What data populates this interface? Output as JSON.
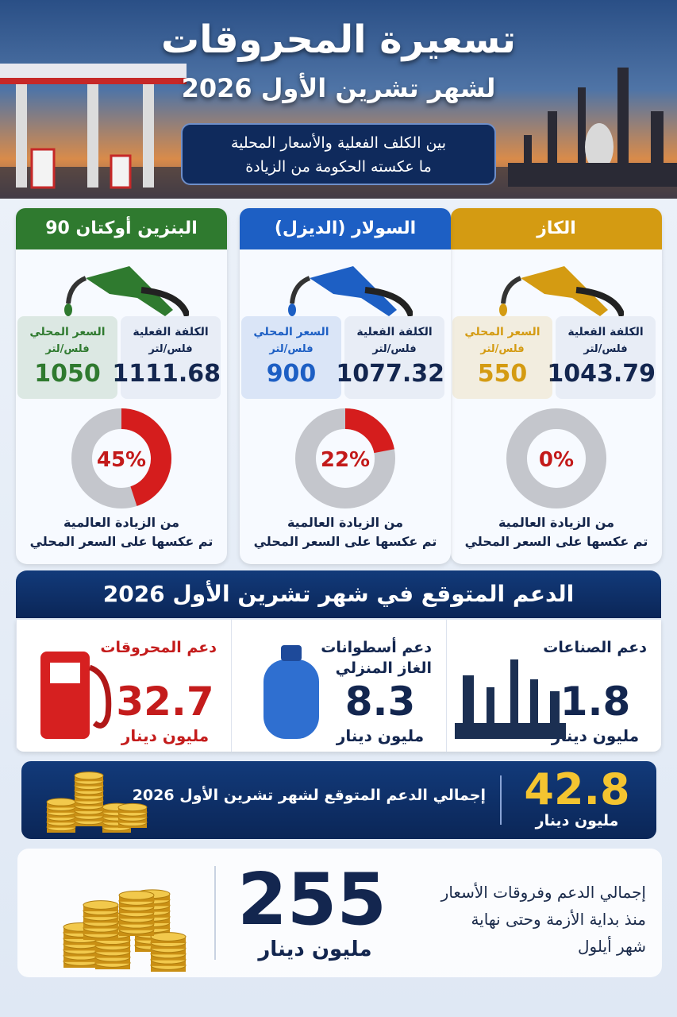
{
  "header": {
    "title": "تسعيرة المحروقات",
    "subtitle": "لشهر تشرين الأول 2026",
    "note_lines": [
      "بين الكلف الفعلية والأسعار المحلية",
      "ما عكسته الحكومة من الزيادة"
    ]
  },
  "labels": {
    "cost": "الكلفة الفعلية",
    "price": "السعر المحلي",
    "unit": "فلس/لتر",
    "caption_lines": [
      "من الزيادة العالمية",
      "تم عكسها على السعر المحلي"
    ]
  },
  "fuels": [
    {
      "name": "الكاز",
      "color": "#d49b12",
      "cost": 1043.79,
      "price": 550,
      "share": {
        "value": 0,
        "label": "0%"
      }
    },
    {
      "name": "السولار (الديزل)",
      "color": "#1d5fc4",
      "cost": 1077.32,
      "price": 900,
      "share": {
        "value": 22,
        "label": "22%"
      }
    },
    {
      "name": "البنزين أوكتان 90",
      "color": "#2f7a2f",
      "cost": 1111.68,
      "price": 1050,
      "share": {
        "value": 45,
        "label": "45%"
      }
    }
  ],
  "subsidy": {
    "title": "الدعم المتوقع في شهر تشرين الأول 2026",
    "unit": "مليون دينار",
    "items": [
      {
        "label_lines": [
          "دعم الصناعات"
        ],
        "value": 1.8
      },
      {
        "label_lines": [
          "دعم أسطوانات",
          "الغاز المنزلي"
        ],
        "value": 8.3
      },
      {
        "label_lines": [
          "دعم المحروقات"
        ],
        "value": 32.7
      }
    ],
    "total": {
      "label": "إجمالي الدعم المتوقع لشهر تشرين الأول 2026",
      "value": 42.8
    }
  },
  "cumulative": {
    "value": 255,
    "unit": "مليون دينار",
    "description_lines": [
      "إجمالي الدعم وفروقات الأسعار",
      "منذ بداية الأزمة وحتى نهاية",
      "شهر أيلول"
    ]
  }
}
